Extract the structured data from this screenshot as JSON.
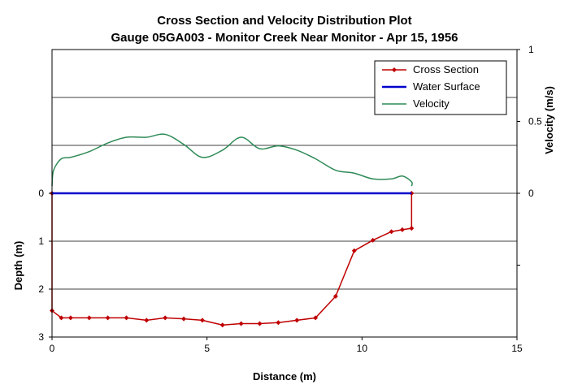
{
  "chart_data": {
    "type": "line",
    "title_line1": "Cross Section and Velocity Distribution Plot",
    "title_line2": "Gauge 05GA003 - Monitor Creek Near Monitor - Apr 15, 1956",
    "xlabel": "Distance (m)",
    "ylabel_left": "Depth (m)",
    "ylabel_right": "Velocity (m/s)",
    "xlim": [
      0,
      15
    ],
    "x_ticks": [
      "0",
      "5",
      "10",
      "15"
    ],
    "depth_lim": [
      -3,
      3
    ],
    "depth_ticks": [
      "0",
      "1",
      "2",
      "3"
    ],
    "velocity_lim": [
      -1,
      1
    ],
    "velocity_ticks": [
      "0",
      "0.5",
      "1"
    ],
    "gridlines_depth": [
      -3,
      -2,
      -1,
      0,
      1,
      2
    ],
    "legend_position": "top-right",
    "colors": {
      "cross_section": "#c00000",
      "water_surface": "#0000cc",
      "velocity": "#2e8b57"
    },
    "series": [
      {
        "name": "Cross Section",
        "key": "cross_section",
        "x": [
          0,
          0,
          0.3,
          0.6,
          1.2,
          1.8,
          2.4,
          3.05,
          3.65,
          4.25,
          4.85,
          5.5,
          6.1,
          6.7,
          7.3,
          7.9,
          8.5,
          9.15,
          9.75,
          10.35,
          10.95,
          11.3,
          11.6,
          11.6
        ],
        "y": [
          0,
          2.45,
          2.6,
          2.6,
          2.6,
          2.6,
          2.6,
          2.65,
          2.6,
          2.62,
          2.65,
          2.75,
          2.72,
          2.72,
          2.7,
          2.65,
          2.6,
          2.15,
          1.2,
          0.98,
          0.8,
          0.76,
          0.73,
          0
        ]
      },
      {
        "name": "Water Surface",
        "key": "water_surface",
        "x": [
          0,
          11.6
        ],
        "y": [
          0,
          0
        ]
      },
      {
        "name": "Velocity",
        "key": "velocity",
        "x": [
          0,
          0.05,
          0.3,
          0.6,
          1.2,
          1.8,
          2.4,
          3.05,
          3.65,
          4.25,
          4.85,
          5.5,
          6.1,
          6.7,
          7.3,
          7.9,
          8.5,
          9.15,
          9.75,
          10.35,
          10.95,
          11.3,
          11.6,
          11.6
        ],
        "y": [
          0.05,
          0.16,
          0.24,
          0.25,
          0.29,
          0.35,
          0.39,
          0.39,
          0.41,
          0.34,
          0.25,
          0.3,
          0.39,
          0.31,
          0.33,
          0.3,
          0.24,
          0.16,
          0.14,
          0.1,
          0.1,
          0.12,
          0.08,
          0.05
        ]
      }
    ]
  }
}
